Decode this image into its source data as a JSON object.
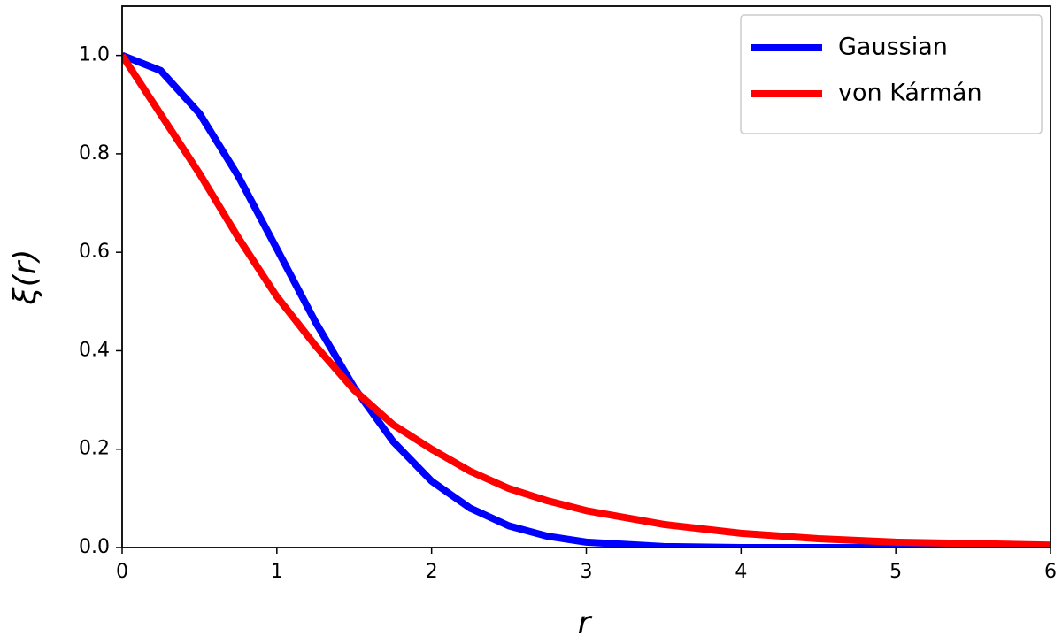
{
  "chart_data": {
    "type": "line",
    "xlabel": "r",
    "ylabel": "ξ(r)",
    "x": [
      0,
      0.25,
      0.5,
      0.75,
      1,
      1.25,
      1.5,
      1.75,
      2,
      2.25,
      2.5,
      2.75,
      3,
      3.5,
      4,
      4.5,
      5,
      5.5,
      6
    ],
    "series": [
      {
        "name": "Gaussian",
        "color": "#0000ff",
        "values": [
          1,
          0.969,
          0.882,
          0.755,
          0.607,
          0.458,
          0.325,
          0.216,
          0.135,
          0.08,
          0.044,
          0.023,
          0.011,
          0.002,
          0,
          0,
          0,
          0,
          0
        ]
      },
      {
        "name": "von Kármán",
        "color": "#ff0000",
        "values": [
          1,
          0.88,
          0.76,
          0.63,
          0.51,
          0.41,
          0.32,
          0.25,
          0.2,
          0.155,
          0.12,
          0.095,
          0.075,
          0.047,
          0.029,
          0.018,
          0.011,
          0.008,
          0.005
        ]
      }
    ],
    "xlim": [
      0,
      6
    ],
    "xticks": [
      0,
      1,
      2,
      3,
      4,
      5,
      6
    ],
    "ylim": [
      0,
      1.1
    ],
    "yticks": [
      {
        "value": 0,
        "label": "0.0"
      },
      0.2,
      0.4,
      0.6,
      0.8,
      {
        "value": 1,
        "label": "1.0"
      }
    ],
    "legend": "upper right",
    "grid": false
  }
}
